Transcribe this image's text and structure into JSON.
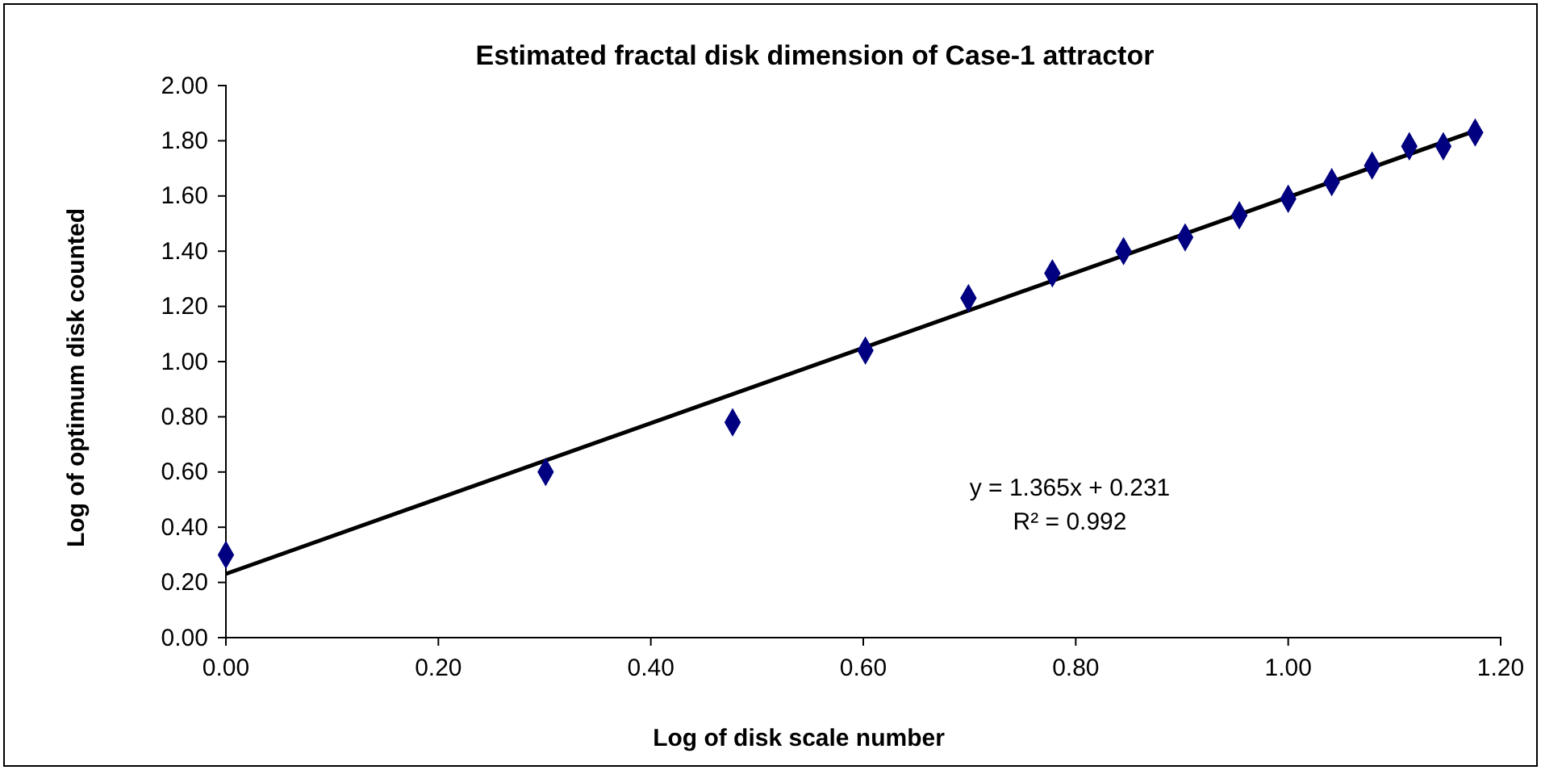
{
  "chart_data": {
    "type": "scatter",
    "title": "Estimated fractal disk dimension of Case-1 attractor",
    "xlabel": "Log of disk scale number",
    "ylabel": "Log of optimum disk counted",
    "xlim": [
      0,
      1.2
    ],
    "xticks": [
      {
        "value": 0,
        "label": "0.00"
      },
      {
        "value": 0.2,
        "label": "0.20"
      },
      {
        "value": 0.4,
        "label": "0.40"
      },
      {
        "value": 0.6,
        "label": "0.60"
      },
      {
        "value": 0.8,
        "label": "0.80"
      },
      {
        "value": 1,
        "label": "1.00"
      },
      {
        "value": 1.2,
        "label": "1.20"
      }
    ],
    "ylim": [
      0,
      2
    ],
    "yticks": [
      {
        "value": 0,
        "label": "0.00"
      },
      {
        "value": 0.2,
        "label": "0.20"
      },
      {
        "value": 0.4,
        "label": "0.40"
      },
      {
        "value": 0.6,
        "label": "0.60"
      },
      {
        "value": 0.8,
        "label": "0.80"
      },
      {
        "value": 1,
        "label": "1.00"
      },
      {
        "value": 1.2,
        "label": "1.20"
      },
      {
        "value": 1.4,
        "label": "1.40"
      },
      {
        "value": 1.6,
        "label": "1.60"
      },
      {
        "value": 1.8,
        "label": "1.80"
      },
      {
        "value": 2,
        "label": "2.00"
      }
    ],
    "grid": false,
    "series": [
      {
        "color": "#000080",
        "marker": "diamond",
        "x": [
          0,
          0.301,
          0.477,
          0.602,
          0.699,
          0.778,
          0.845,
          0.903,
          0.954,
          1.0,
          1.041,
          1.079,
          1.114,
          1.146,
          1.176
        ],
        "values": [
          0.3,
          0.6,
          0.78,
          1.04,
          1.23,
          1.32,
          1.4,
          1.45,
          1.53,
          1.59,
          1.65,
          1.71,
          1.78,
          1.78,
          1.83
        ]
      },
      {
        "type": "line",
        "color": "#000000",
        "marker": "none",
        "line_style": "solid",
        "x": [
          0,
          1.176
        ],
        "values": [
          0.231,
          1.836
        ]
      }
    ],
    "annotations": [
      "y = 1.365x + 0.231",
      "R² = 0.992"
    ]
  }
}
